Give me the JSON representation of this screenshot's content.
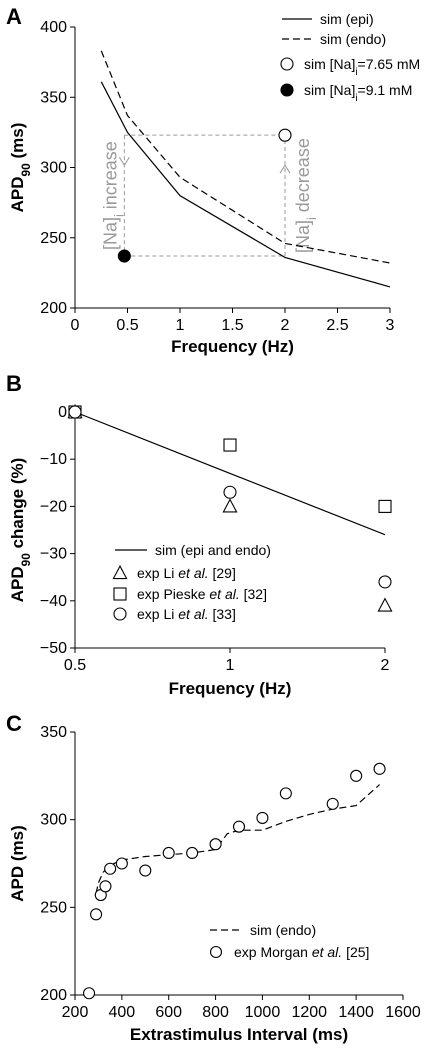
{
  "colors": {
    "ink": "#000000",
    "annotation_gray": "#9a9a9a",
    "background": "#ffffff"
  },
  "chart_data": [
    {
      "panel_label": "A",
      "type": "line",
      "ylabel": "APD",
      "ylabel_sub": "90",
      "ylabel_unit": " (ms)",
      "xlabel": "Frequency (Hz)",
      "xlim": [
        0,
        3
      ],
      "ylim": [
        200,
        400
      ],
      "xticks": [
        0,
        0.5,
        1,
        1.5,
        2,
        2.5,
        3
      ],
      "xticklabels": [
        "0",
        "0.5",
        "1",
        "1.5",
        "2",
        "2.5",
        "3"
      ],
      "yticks": [
        200,
        250,
        300,
        350,
        400
      ],
      "yticklabels": [
        "200",
        "250",
        "300",
        "350",
        "400"
      ],
      "grid": false,
      "legend_position": "top-right",
      "series": [
        {
          "name": "sim (epi)",
          "style": "solid",
          "x": [
            0.25,
            0.5,
            1,
            2,
            3
          ],
          "y": [
            361,
            325,
            280,
            236,
            215
          ]
        },
        {
          "name": "sim (endo)",
          "style": "dashed",
          "x": [
            0.25,
            0.5,
            1,
            2,
            3
          ],
          "y": [
            383,
            337,
            293,
            246,
            232
          ]
        }
      ],
      "points": [
        {
          "name": "sim [Na]i=7.65 mM",
          "legend_main": "sim [Na]",
          "legend_sub": "i",
          "legend_tail": "=7.65 mM",
          "marker": "open-circle",
          "x": 2,
          "y": 323
        },
        {
          "name": "sim [Na]i=9.1 mM",
          "legend_main": "sim [Na]",
          "legend_sub": "i",
          "legend_tail": "=9.1 mM",
          "marker": "filled-circle",
          "x": 0.47,
          "y": 237
        }
      ],
      "annotations": [
        {
          "text_main": "[Na]",
          "text_sub": "i",
          "text_tail": " increase",
          "x": 0.47,
          "from_y": 323,
          "to_y": 237
        },
        {
          "text_main": "[Na]",
          "text_sub": "i",
          "text_tail": " decrease",
          "x": 2,
          "from_y": 237,
          "to_y": 323
        }
      ]
    },
    {
      "panel_label": "B",
      "type": "line",
      "ylabel": "APD",
      "ylabel_sub": "90",
      "ylabel_unit": " change (%)",
      "xlabel": "Frequency (Hz)",
      "xscale": "log",
      "xlim": [
        0.5,
        2
      ],
      "ylim": [
        -50,
        0
      ],
      "xticks": [
        0.5,
        1,
        2
      ],
      "xticklabels": [
        "0.5",
        "1",
        "2"
      ],
      "yticks": [
        0,
        -10,
        -20,
        -30,
        -40,
        -50
      ],
      "yticklabels": [
        "0",
        "−10",
        "−20",
        "−30",
        "−40",
        "−50"
      ],
      "grid": false,
      "legend_position": "bottom-left",
      "series": [
        {
          "name": "sim (epi and endo)",
          "style": "solid",
          "x": [
            0.5,
            1,
            2
          ],
          "y": [
            0,
            -13,
            -26
          ]
        },
        {
          "name_main": "exp Li ",
          "name_italic": "et al.",
          "name_tail": " [29]",
          "marker": "open-triangle",
          "x": [
            0.5,
            1,
            2
          ],
          "y": [
            0,
            -20,
            -41
          ]
        },
        {
          "name_main": "exp Pieske ",
          "name_italic": "et al.",
          "name_tail": " [32]",
          "marker": "open-square",
          "x": [
            0.5,
            1,
            2
          ],
          "y": [
            0,
            -7,
            -20
          ]
        },
        {
          "name_main": "exp Li ",
          "name_italic": "et al.",
          "name_tail": " [33]",
          "marker": "open-circle",
          "x": [
            0.5,
            1,
            2
          ],
          "y": [
            0,
            -17,
            -36
          ]
        }
      ]
    },
    {
      "panel_label": "C",
      "type": "line",
      "ylabel": "APD (ms)",
      "xlabel": "Extrastimulus Interval (ms)",
      "xlim": [
        200,
        1600
      ],
      "ylim": [
        200,
        350
      ],
      "xticks": [
        200,
        400,
        600,
        800,
        1000,
        1200,
        1400,
        1600
      ],
      "xticklabels": [
        "200",
        "400",
        "600",
        "800",
        "1000",
        "1200",
        "1400",
        "1600"
      ],
      "yticks": [
        200,
        250,
        300,
        350
      ],
      "yticklabels": [
        "200",
        "250",
        "300",
        "350"
      ],
      "grid": false,
      "legend_position": "bottom-right",
      "series": [
        {
          "name": "sim (endo)",
          "style": "dashed",
          "x": [
            290,
            300,
            320,
            350,
            400,
            500,
            600,
            700,
            800,
            850,
            900,
            1000,
            1100,
            1200,
            1300,
            1400,
            1500
          ],
          "y": [
            258,
            264,
            270,
            274,
            277,
            279,
            280,
            281,
            283,
            292,
            294,
            294,
            299,
            303,
            306,
            308,
            320
          ]
        },
        {
          "name_main": "exp Morgan ",
          "name_italic": "et al.",
          "name_tail": " [25]",
          "marker": "open-circle",
          "x": [
            260,
            290,
            310,
            330,
            350,
            400,
            500,
            600,
            700,
            800,
            900,
            1000,
            1100,
            1300,
            1400,
            1500
          ],
          "y": [
            201,
            246,
            257,
            262,
            272,
            275,
            271,
            281,
            281,
            286,
            296,
            301,
            315,
            309,
            325,
            329
          ]
        }
      ]
    }
  ]
}
